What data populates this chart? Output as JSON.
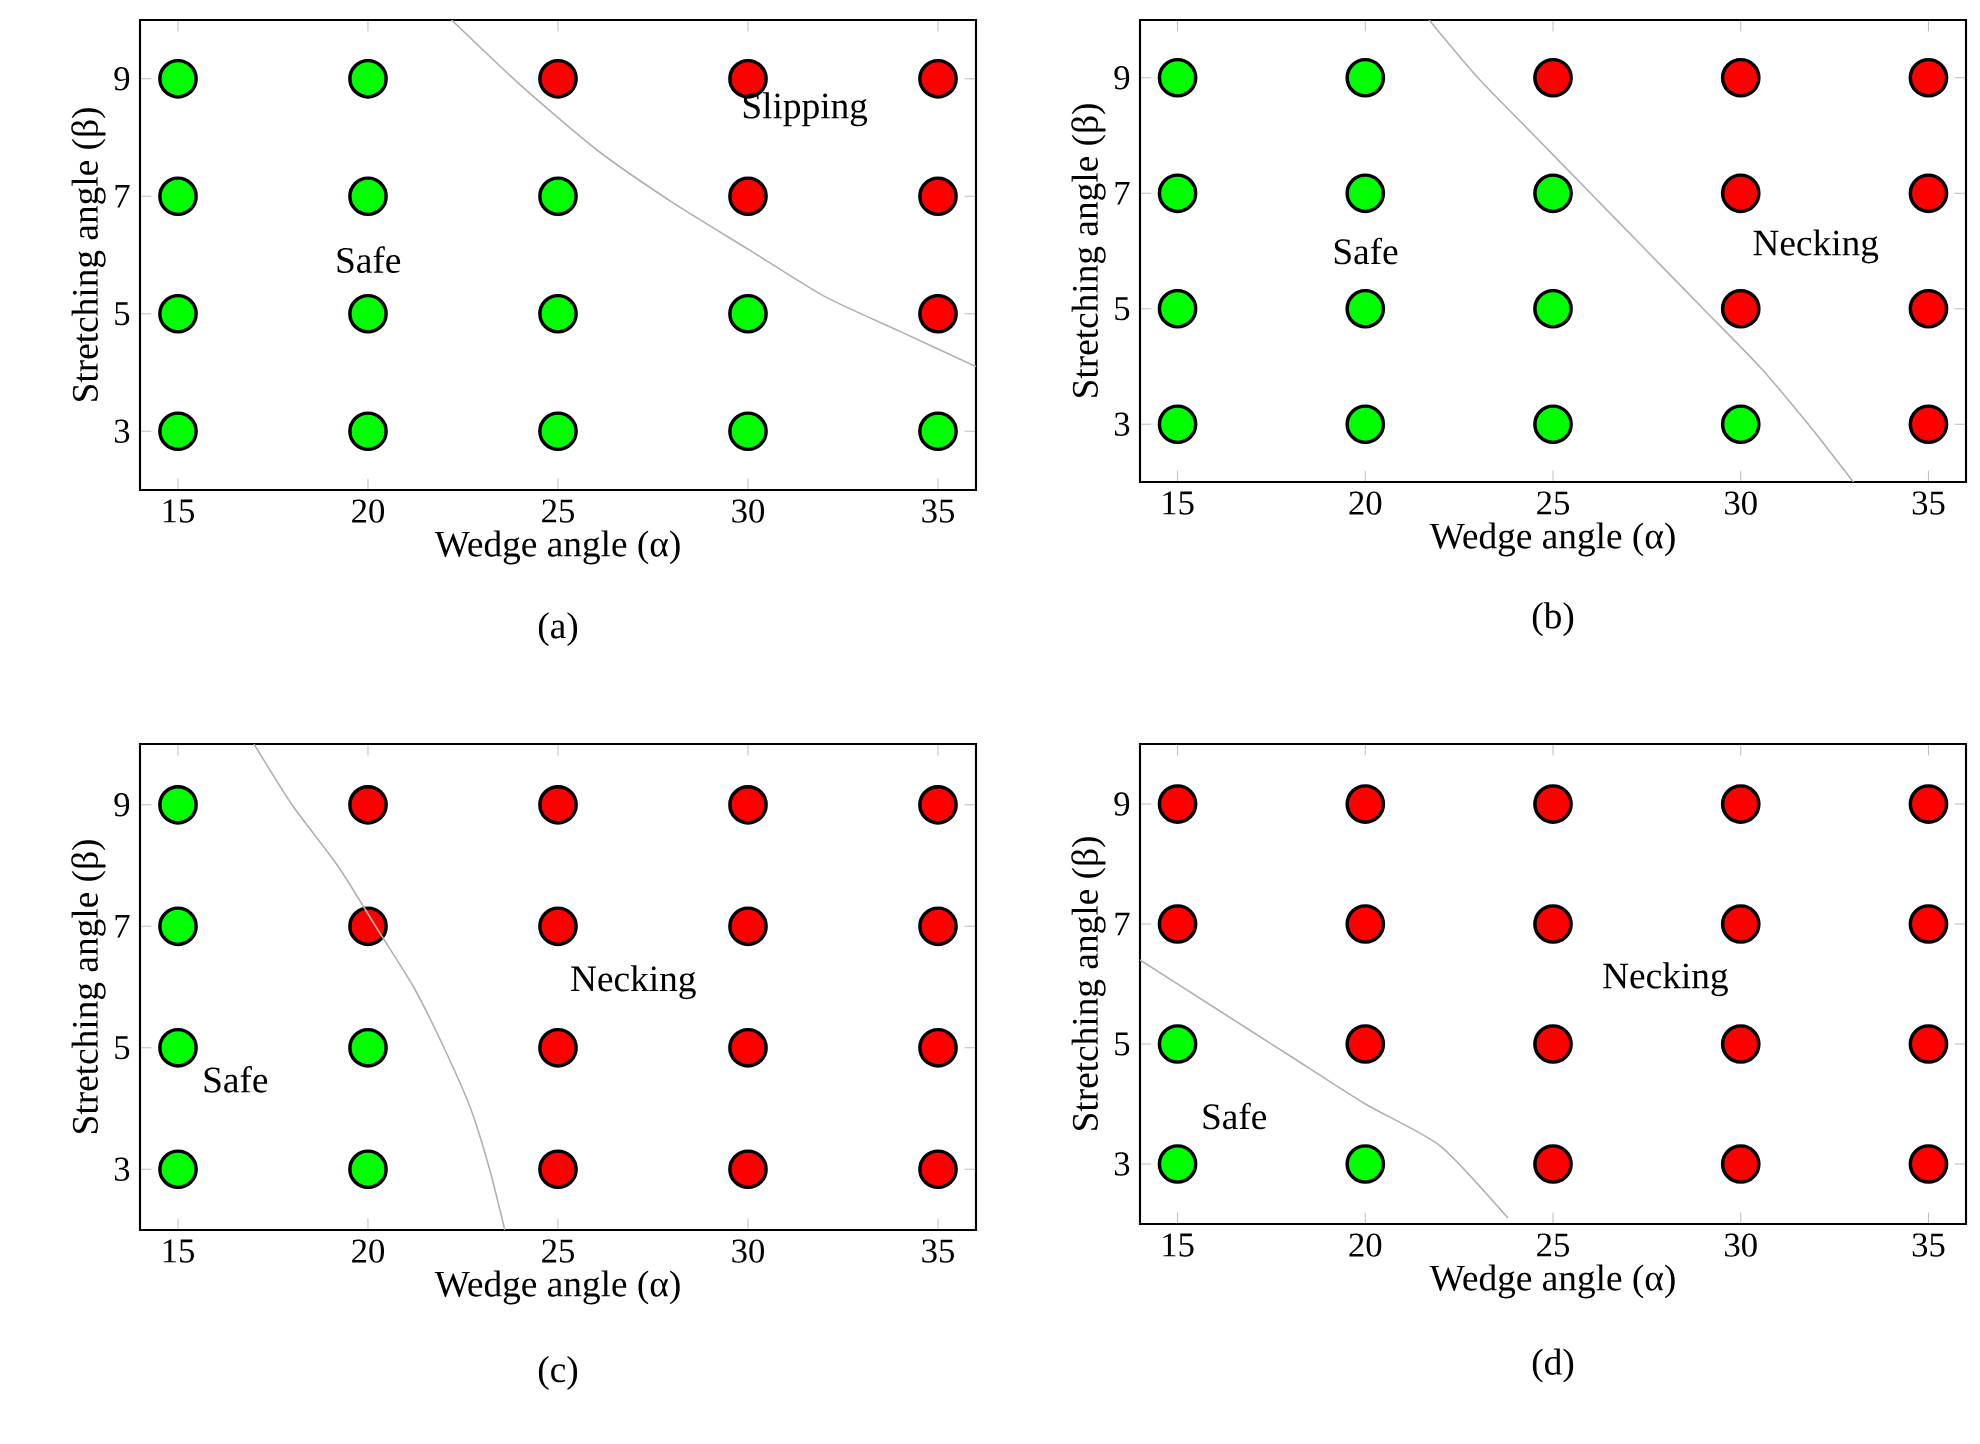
{
  "chart_data": [
    {
      "type": "scatter",
      "xlabel": "Wedge angle (α)",
      "ylabel": "Stretching angle (β)",
      "xlim": [
        14,
        36
      ],
      "ylim": [
        2,
        10
      ],
      "xticks": [
        15,
        20,
        25,
        30,
        35
      ],
      "yticks": [
        3,
        5,
        7,
        9
      ],
      "series": [
        {
          "marker": "circle",
          "color": "#00ff00",
          "x": [
            15,
            20,
            15,
            20,
            25,
            15,
            20,
            25,
            30,
            15,
            20,
            25,
            30,
            35
          ],
          "values": [
            9,
            9,
            7,
            7,
            7,
            5,
            5,
            5,
            5,
            3,
            3,
            3,
            3,
            3
          ]
        },
        {
          "marker": "circle",
          "color": "#ff0000",
          "x": [
            25,
            30,
            35,
            30,
            35,
            35
          ],
          "values": [
            9,
            9,
            9,
            7,
            7,
            5
          ]
        },
        {
          "type": "line",
          "marker": "none",
          "color": "#b0b0b0",
          "x": [
            22.2,
            24,
            26,
            28,
            30,
            32,
            34,
            36
          ],
          "values": [
            10,
            8.9,
            7.8,
            6.9,
            6.1,
            5.3,
            4.7,
            4.1
          ]
        }
      ],
      "annotations": [
        "Safe",
        "Slipping",
        "(a)"
      ]
    },
    {
      "type": "scatter",
      "xlabel": "Wedge angle (α)",
      "ylabel": "Stretching angle (β)",
      "xlim": [
        14,
        36
      ],
      "ylim": [
        2,
        10
      ],
      "xticks": [
        15,
        20,
        25,
        30,
        35
      ],
      "yticks": [
        3,
        5,
        7,
        9
      ],
      "series": [
        {
          "marker": "circle",
          "color": "#00ff00",
          "x": [
            15,
            20,
            15,
            20,
            25,
            15,
            20,
            25,
            15,
            20,
            25,
            30
          ],
          "values": [
            9,
            9,
            7,
            7,
            7,
            5,
            5,
            5,
            3,
            3,
            3,
            3
          ]
        },
        {
          "marker": "circle",
          "color": "#ff0000",
          "x": [
            25,
            30,
            35,
            30,
            35,
            30,
            35,
            35
          ],
          "values": [
            9,
            9,
            9,
            7,
            7,
            5,
            5,
            3
          ]
        },
        {
          "type": "line",
          "marker": "none",
          "color": "#b0b0b0",
          "x": [
            21.7,
            23,
            24.5,
            26,
            27.5,
            29,
            30.5,
            31.8,
            33
          ],
          "values": [
            10,
            9,
            8,
            7,
            6,
            5,
            4,
            3,
            2
          ]
        }
      ],
      "annotations": [
        "Safe",
        "Necking",
        "(b)"
      ]
    },
    {
      "type": "scatter",
      "xlabel": "Wedge angle (α)",
      "ylabel": "Stretching angle (β)",
      "xlim": [
        14,
        36
      ],
      "ylim": [
        2,
        10
      ],
      "xticks": [
        15,
        20,
        25,
        30,
        35
      ],
      "yticks": [
        3,
        5,
        7,
        9
      ],
      "series": [
        {
          "marker": "circle",
          "color": "#00ff00",
          "x": [
            15,
            15,
            15,
            20,
            15,
            20
          ],
          "values": [
            9,
            7,
            5,
            5,
            3,
            3
          ]
        },
        {
          "marker": "circle",
          "color": "#ff0000",
          "x": [
            20,
            25,
            30,
            35,
            20,
            25,
            30,
            35,
            25,
            30,
            35,
            25,
            30,
            35
          ],
          "values": [
            9,
            9,
            9,
            9,
            7,
            7,
            7,
            7,
            5,
            5,
            5,
            3,
            3,
            3
          ]
        },
        {
          "type": "line",
          "marker": "none",
          "color": "#b0b0b0",
          "x": [
            17,
            18,
            19.2,
            20.2,
            21.2,
            22,
            22.7,
            23.2,
            23.6
          ],
          "values": [
            10,
            9,
            8,
            7,
            6,
            5,
            4,
            3,
            2
          ]
        }
      ],
      "annotations": [
        "Safe",
        "Necking",
        "(c)"
      ]
    },
    {
      "type": "scatter",
      "xlabel": "Wedge angle (α)",
      "ylabel": "Stretching angle (β)",
      "xlim": [
        14,
        36
      ],
      "ylim": [
        2,
        10
      ],
      "xticks": [
        15,
        20,
        25,
        30,
        35
      ],
      "yticks": [
        3,
        5,
        7,
        9
      ],
      "series": [
        {
          "marker": "circle",
          "color": "#00ff00",
          "x": [
            15,
            15,
            20
          ],
          "values": [
            5,
            3,
            3
          ]
        },
        {
          "marker": "circle",
          "color": "#ff0000",
          "x": [
            15,
            20,
            25,
            30,
            35,
            15,
            20,
            25,
            30,
            35,
            20,
            25,
            30,
            35,
            25,
            30,
            35
          ],
          "values": [
            9,
            9,
            9,
            9,
            9,
            7,
            7,
            7,
            7,
            7,
            5,
            5,
            5,
            5,
            3,
            3,
            3
          ]
        },
        {
          "type": "line",
          "marker": "none",
          "color": "#b0b0b0",
          "x": [
            14,
            16,
            18,
            20,
            22,
            23.8
          ],
          "values": [
            6.4,
            5.6,
            4.8,
            4,
            3.3,
            2.1
          ]
        }
      ],
      "annotations": [
        "Safe",
        "Necking",
        "(d)"
      ]
    }
  ]
}
